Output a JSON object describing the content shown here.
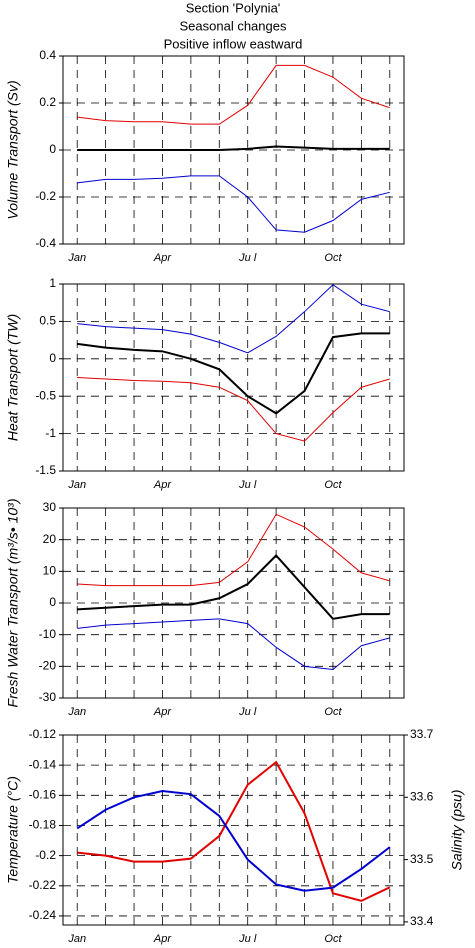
{
  "chart_data": [
    {
      "type": "line",
      "title": "Section 'Polynia'",
      "subtitle": [
        "Seasonal changes",
        "Positive inflow eastward"
      ],
      "ylabel": "Volume Transport (Sv)",
      "categories": [
        "Jan",
        null,
        null,
        "Apr",
        null,
        null,
        "Ju l",
        null,
        null,
        "Oct",
        null,
        null
      ],
      "ylim": [
        -0.4,
        0.4
      ],
      "yticks": [
        0.4,
        0.2,
        0,
        -0.2,
        -0.4
      ],
      "grid": true,
      "series": [
        {
          "color": "#e00000",
          "width": 1,
          "values": [
            0.14,
            0.125,
            0.12,
            0.12,
            0.11,
            0.11,
            0.19,
            0.36,
            0.36,
            0.31,
            0.22,
            0.18
          ]
        },
        {
          "color": "#0000d0",
          "width": 1,
          "values": [
            -0.14,
            -0.125,
            -0.125,
            -0.12,
            -0.11,
            -0.11,
            -0.2,
            -0.34,
            -0.35,
            -0.3,
            -0.21,
            -0.18
          ]
        },
        {
          "color": "#000000",
          "width": 2,
          "values": [
            0,
            0,
            0,
            0,
            0,
            0,
            0.005,
            0.015,
            0.01,
            0.005,
            0.005,
            0.005
          ]
        }
      ]
    },
    {
      "type": "line",
      "ylabel": "Heat Transport (TW)",
      "categories": [
        "Jan",
        null,
        null,
        "Apr",
        null,
        null,
        "Ju l",
        null,
        null,
        "Oct",
        null,
        null
      ],
      "ylim": [
        -1.5,
        1
      ],
      "yticks": [
        1,
        0.5,
        0,
        -0.5,
        -1,
        -1.5
      ],
      "grid": true,
      "series": [
        {
          "color": "#0000d0",
          "width": 1,
          "values": [
            0.47,
            0.43,
            0.41,
            0.39,
            0.33,
            0.22,
            0.08,
            0.3,
            0.63,
            0.99,
            0.73,
            0.63
          ]
        },
        {
          "color": "#000000",
          "width": 2,
          "values": [
            0.2,
            0.15,
            0.12,
            0.1,
            0,
            -0.14,
            -0.5,
            -0.73,
            -0.43,
            0.29,
            0.34,
            0.34
          ]
        },
        {
          "color": "#e00000",
          "width": 1,
          "values": [
            -0.25,
            -0.27,
            -0.29,
            -0.3,
            -0.32,
            -0.38,
            -0.56,
            -1.0,
            -1.1,
            -0.72,
            -0.38,
            -0.27
          ]
        }
      ]
    },
    {
      "type": "line",
      "ylabel": "Fresh Water Transport (m³/s• 10³)",
      "categories": [
        "Jan",
        null,
        null,
        "Apr",
        null,
        null,
        "Ju l",
        null,
        null,
        "Oct",
        null,
        null
      ],
      "ylim": [
        -30,
        30
      ],
      "yticks": [
        30,
        20,
        10,
        0,
        -10,
        -20,
        -30
      ],
      "grid": true,
      "series": [
        {
          "color": "#e00000",
          "width": 1,
          "values": [
            6,
            5.5,
            5.5,
            5.5,
            5.5,
            6.5,
            13,
            28,
            24,
            17,
            9.5,
            7
          ]
        },
        {
          "color": "#000000",
          "width": 2,
          "values": [
            -2,
            -1.5,
            -1,
            -0.5,
            -0.5,
            1.5,
            6,
            15,
            5,
            -5,
            -3.5,
            -3.5
          ]
        },
        {
          "color": "#0000d0",
          "width": 1,
          "values": [
            -8,
            -7,
            -6.5,
            -6,
            -5.5,
            -5,
            -6.5,
            -14,
            -20,
            -21,
            -13.5,
            -11
          ]
        }
      ]
    },
    {
      "type": "line",
      "ylabel": "Temperature (°C)",
      "ylabel_color": "#e00000",
      "y2label": "Salinity (psu)",
      "y2label_color": "#0000d0",
      "categories": [
        "Jan",
        null,
        null,
        "Apr",
        null,
        null,
        "Ju l",
        null,
        null,
        "Oct",
        null,
        null
      ],
      "ylim": [
        -0.246,
        -0.12
      ],
      "yticks": [
        -0.12,
        -0.14,
        -0.16,
        -0.18,
        -0.2,
        -0.22,
        -0.24
      ],
      "y2lim": [
        33.395,
        33.7
      ],
      "y2ticks": [
        33.7,
        33.6,
        33.5,
        33.4
      ],
      "grid": true,
      "series": [
        {
          "color": "#e00000",
          "width": 2,
          "values": [
            -0.198,
            -0.2,
            -0.204,
            -0.204,
            -0.202,
            -0.187,
            -0.153,
            -0.138,
            -0.172,
            -0.225,
            -0.23,
            -0.221
          ]
        },
        {
          "color": "#0000d0",
          "width": 2,
          "axis": "y2",
          "values": [
            33.55,
            33.58,
            33.6,
            33.61,
            33.605,
            33.57,
            33.5,
            33.46,
            33.45,
            33.455,
            33.485,
            33.52
          ]
        }
      ]
    }
  ]
}
